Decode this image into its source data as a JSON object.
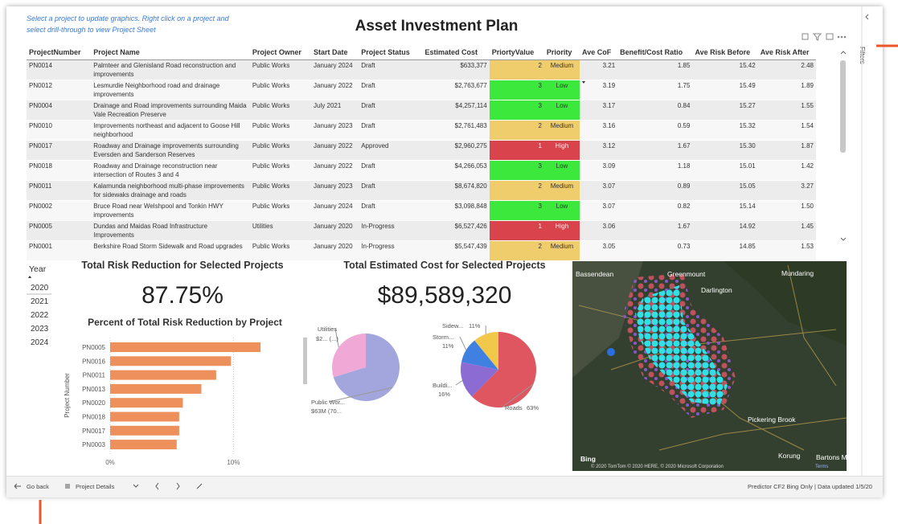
{
  "instruction": "Select a project to update graphics.  Right click on a project and select drill-through to view Project Sheet",
  "title": "Asset Investment Plan",
  "table": {
    "columns": [
      "ProjectNumber",
      "Project Name",
      "Project Owner",
      "Start Date",
      "Project Status",
      "Estimated Cost",
      "PriortyValue",
      "Priority",
      "Ave CoF",
      "Benefit/Cost Ratio",
      "Ave Risk Before",
      "Ave Risk After"
    ],
    "rows": [
      [
        "PN0014",
        "Palmteer and Glenisland Road reconstruction and improvements",
        "Public Works",
        "January 2024",
        "Draft",
        "$633,377",
        "2",
        "Medium",
        "3.21",
        "1.85",
        "15.42",
        "2.48"
      ],
      [
        "PN0012",
        "Lesmurdie Neighborhood road and drainage improvements",
        "Public Works",
        "January 2022",
        "Draft",
        "$2,763,677",
        "3",
        "Low",
        "3.19",
        "1.75",
        "15.49",
        "1.89"
      ],
      [
        "PN0004",
        "Drainage and Road improvements surrounding Maida Vale Recreation Preserve",
        "Public Works",
        "July 2021",
        "Draft",
        "$4,257,114",
        "3",
        "Low",
        "3.17",
        "0.84",
        "15.27",
        "1.55"
      ],
      [
        "PN0010",
        "Improvements northeast and adjacent to Goose Hill neighborhood",
        "Public Works",
        "January 2023",
        "Draft",
        "$2,761,483",
        "2",
        "Medium",
        "3.16",
        "0.59",
        "15.32",
        "1.54"
      ],
      [
        "PN0017",
        "Roadway and Drainage improvements surrounding Eversden and Sanderson Reserves",
        "Public Works",
        "January 2022",
        "Approved",
        "$2,960,275",
        "1",
        "High",
        "3.12",
        "1.67",
        "15.30",
        "1.87"
      ],
      [
        "PN0018",
        "Roadway and Drainage reconstruction near intersection of Routes 3 and 4",
        "Public Works",
        "January 2022",
        "Draft",
        "$4,266,053",
        "3",
        "Low",
        "3.09",
        "1.18",
        "15.01",
        "1.42"
      ],
      [
        "PN0011",
        "Kalamunda neighborhood multi-phase improvements for sidewaks drainage and roads",
        "Public Works",
        "January 2023",
        "Draft",
        "$8,674,820",
        "2",
        "Medium",
        "3.07",
        "0.89",
        "15.05",
        "3.27"
      ],
      [
        "PN0002",
        "Bruce Road near Welshpool and Tonkin HWY improvements",
        "Public Works",
        "January 2024",
        "Draft",
        "$3,098,848",
        "3",
        "Low",
        "3.07",
        "0.82",
        "15.14",
        "1.50"
      ],
      [
        "PN0005",
        "Dundas and Maidas Road Infrastructure Improvements",
        "Utilities",
        "January 2020",
        "In-Progress",
        "$6,527,426",
        "1",
        "High",
        "3.06",
        "1.67",
        "14.92",
        "1.45"
      ],
      [
        "PN0001",
        "Berkshire Road Storm Sidewalk and Road upgrades",
        "Public Works",
        "January 2020",
        "In-Progress",
        "$5,547,439",
        "2",
        "Medium",
        "3.05",
        "0.73",
        "14.85",
        "1.53"
      ]
    ],
    "priority_colors": {
      "Medium": "#f0cd6c",
      "Low": "#3de83d",
      "High": "#d8434c"
    }
  },
  "year_slicer": {
    "title": "Year",
    "items": [
      "2020",
      "2021",
      "2022",
      "2023",
      "2024"
    ]
  },
  "cards": [
    {
      "title": "Total Risk Reduction for Selected Projects",
      "value": "87.75%"
    },
    {
      "title": "Total Estimated Cost for Selected Projects",
      "value": "$89,589,320"
    }
  ],
  "chart_data": [
    {
      "type": "bar",
      "orientation": "horizontal",
      "title": "Percent of Total Risk Reduction by Project",
      "y_label": "Project Number",
      "categories": [
        "PN0005",
        "PN0016",
        "PN0011",
        "PN0013",
        "PN0020",
        "PN0018",
        "PN0017",
        "PN0003"
      ],
      "values": [
        12.2,
        9.8,
        8.6,
        7.4,
        5.9,
        5.6,
        5.6,
        5.4
      ],
      "color": "#ee905c",
      "xlim": [
        0,
        15
      ],
      "xticks": [
        {
          "value": 0,
          "label": "0%"
        },
        {
          "value": 10,
          "label": "10%"
        }
      ],
      "grid": true
    },
    {
      "type": "pie",
      "categories": [
        "Public Wor...",
        "Utilities"
      ],
      "values": [
        63,
        26.6
      ],
      "value_labels": [
        "$63M (70...",
        "$2... (...)"
      ],
      "colors": [
        "#a3a6dd",
        "#f0a9d6"
      ]
    },
    {
      "type": "pie",
      "categories": [
        "Roads",
        "Buildi...",
        "Storm...",
        "Sidew..."
      ],
      "values": [
        63,
        16,
        11,
        11
      ],
      "value_labels": [
        "63%",
        "16%",
        "11%",
        "11%"
      ],
      "colors": [
        "#df5560",
        "#8c6bd3",
        "#3f80e0",
        "#f2c84b"
      ]
    }
  ],
  "map": {
    "labels": [
      "Bassendean",
      "Greenmount",
      "Mundaring",
      "Darlington",
      "Pickering Brook",
      "Korung",
      "Bartons Mill",
      "Bing"
    ],
    "attribution": "© 2020 TomTom © 2020 HERE, © 2020 Microsoft Corporation",
    "terms": "Terms"
  },
  "footer": {
    "back": "Go back",
    "page": "Project Details",
    "status": "Predictor CF2 Bing Only | Data updated 1/5/20"
  },
  "filters_pane": "Filters"
}
